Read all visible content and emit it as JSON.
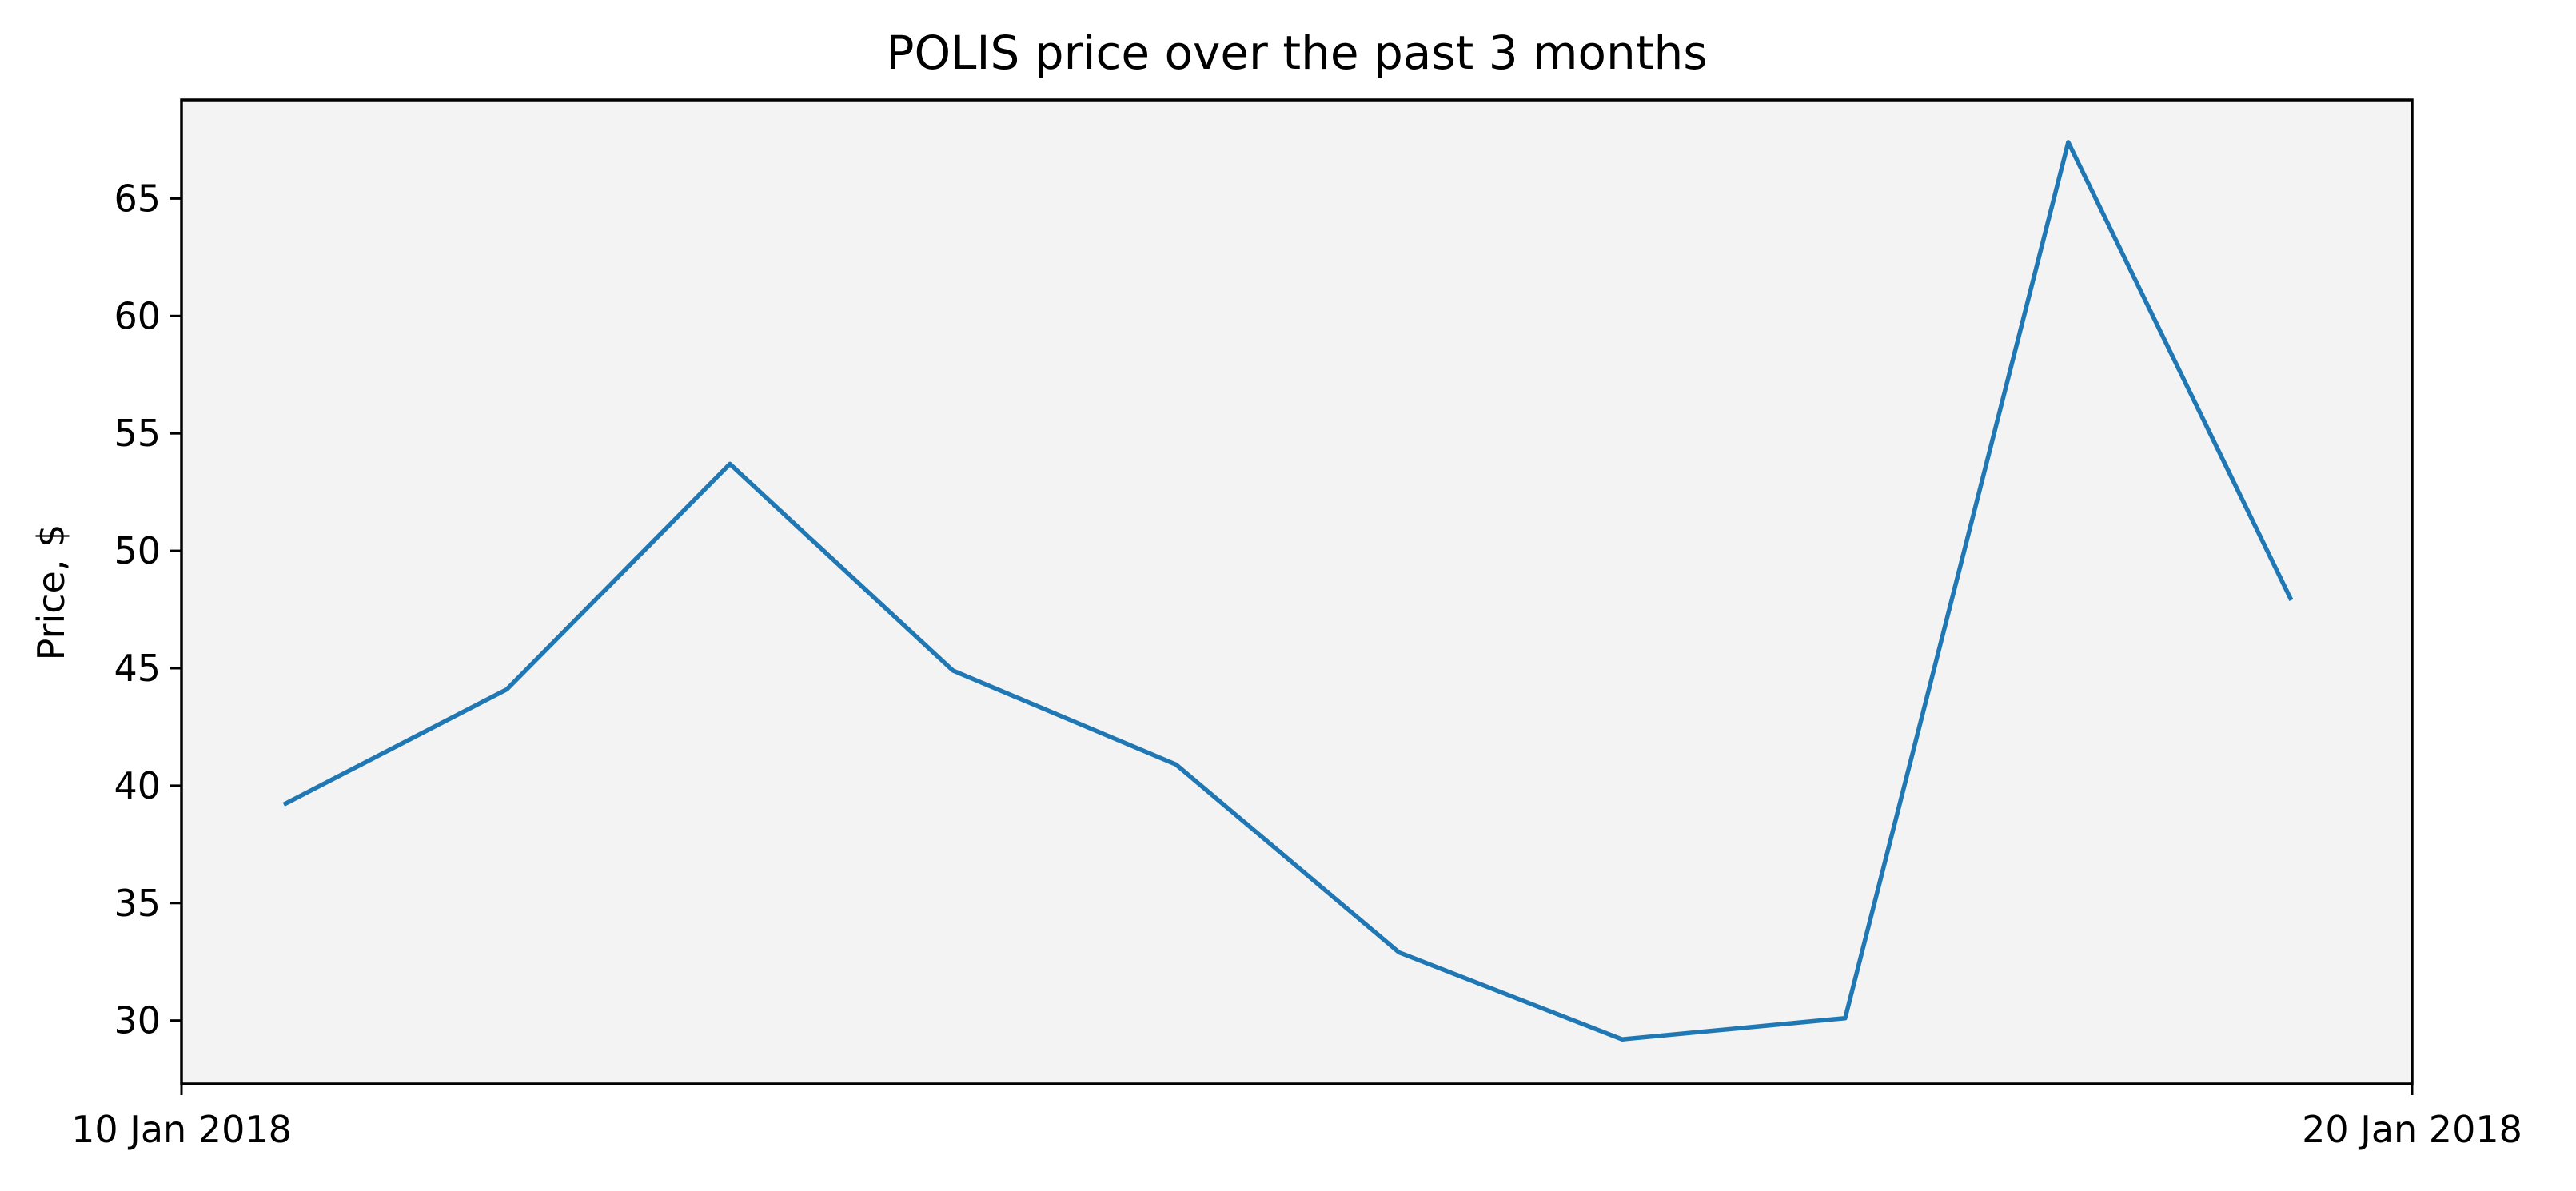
{
  "chart_data": {
    "type": "line",
    "title": "POLIS price over the past 3 months",
    "xlabel": "",
    "ylabel": "Price, $",
    "xlim": [
      "2018-01-10",
      "2018-01-20"
    ],
    "ylim": [
      27.3,
      69.2
    ],
    "x_tick_labels": [
      "10 Jan 2018",
      "20 Jan 2018"
    ],
    "y_ticks": [
      30,
      35,
      40,
      45,
      50,
      55,
      60,
      65
    ],
    "x": [
      "2018-01-10T11:00",
      "2018-01-11T11:00",
      "2018-01-12T11:00",
      "2018-01-13T11:00",
      "2018-01-14T11:00",
      "2018-01-15T11:00",
      "2018-01-16T11:00",
      "2018-01-17T11:00",
      "2018-01-18T11:00",
      "2018-01-19T11:00"
    ],
    "series": [
      {
        "values": [
          39.2,
          44.1,
          53.7,
          44.9,
          40.9,
          32.9,
          29.2,
          30.1,
          67.4,
          47.9
        ]
      }
    ],
    "grid": false,
    "colors": {
      "line": "#1f77b4",
      "plot_background": "#f3f3f3",
      "axes": "#000000"
    }
  }
}
